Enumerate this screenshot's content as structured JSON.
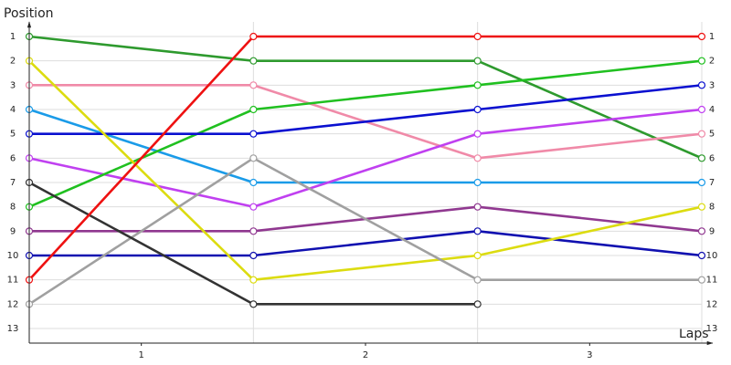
{
  "chart_data": {
    "type": "line",
    "y_label": "Position",
    "x_label": "Laps",
    "x": [
      0,
      1,
      2,
      3
    ],
    "xlim": [
      0,
      3
    ],
    "xticks": [
      {
        "value": 0.5,
        "label": "1"
      },
      {
        "value": 1.5,
        "label": "2"
      },
      {
        "value": 2.5,
        "label": "3"
      }
    ],
    "ylim": [
      0.4,
      13.6
    ],
    "y_inverted": true,
    "yticks": [
      1,
      2,
      3,
      4,
      5,
      6,
      7,
      8,
      9,
      10,
      11,
      12,
      13
    ],
    "grid": true,
    "series": [
      {
        "color": "#2e9a2e",
        "values": [
          1,
          2,
          2,
          6
        ]
      },
      {
        "color": "#f08aa8",
        "values": [
          3,
          3,
          6,
          5
        ]
      },
      {
        "color": "#1a9be8",
        "values": [
          4,
          7,
          7,
          7
        ]
      },
      {
        "color": "#c040f0",
        "values": [
          6,
          8,
          5,
          4
        ]
      },
      {
        "color": "#20c020",
        "values": [
          8,
          4,
          3,
          2
        ]
      },
      {
        "color": "#0a10d0",
        "values": [
          5,
          5,
          4,
          3
        ]
      },
      {
        "color": "#903890",
        "values": [
          9,
          9,
          8,
          9
        ]
      },
      {
        "color": "#1010b0",
        "values": [
          10,
          10,
          9,
          10
        ]
      },
      {
        "color": "#dcdc10",
        "values": [
          2,
          11,
          10,
          8
        ]
      },
      {
        "color": "#a0a0a0",
        "values": [
          12,
          6,
          11,
          11
        ]
      },
      {
        "color": "#333333",
        "values": [
          7,
          12,
          12,
          null
        ]
      },
      {
        "color": "#ee1111",
        "values": [
          11,
          1,
          1,
          1
        ]
      }
    ]
  }
}
